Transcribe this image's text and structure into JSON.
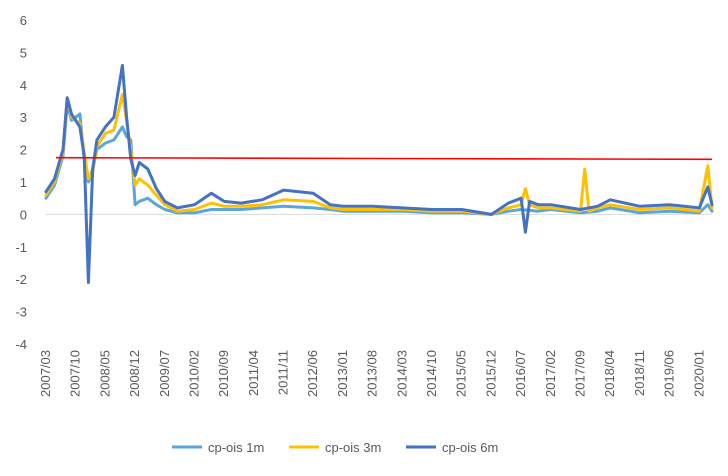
{
  "chart_data": {
    "type": "line",
    "title": "",
    "xlabel": "",
    "ylabel": "",
    "ylim": [
      -4,
      6
    ],
    "yticks": [
      6,
      5,
      4,
      3,
      2,
      1,
      0,
      -1,
      -2,
      -3,
      -4
    ],
    "x_tick_labels": [
      "2007/03",
      "2007/10",
      "2008/05",
      "2008/12",
      "2009/07",
      "2010/02",
      "2010/09",
      "2011/04",
      "2011/11",
      "2012/06",
      "2013/01",
      "2013/08",
      "2014/03",
      "2014/10",
      "2015/05",
      "2015/12",
      "2016/07",
      "2017/02",
      "2017/09",
      "2018/04",
      "2018/11",
      "2019/06",
      "2020/01"
    ],
    "x_range": [
      "2007/03",
      "2020/04"
    ],
    "grid": false,
    "legend_position": "bottom",
    "reference_line": {
      "y": 1.75,
      "y_end": 1.7,
      "color": "#ff0000"
    },
    "series": [
      {
        "name": "cp-ois 1m",
        "color": "#5aa6dc",
        "points": [
          [
            "2007/03",
            0.5
          ],
          [
            "2007/05",
            0.9
          ],
          [
            "2007/07",
            1.8
          ],
          [
            "2007/08",
            3.4
          ],
          [
            "2007/09",
            2.9
          ],
          [
            "2007/11",
            3.1
          ],
          [
            "2007/12",
            1.7
          ],
          [
            "2008/01",
            1.0
          ],
          [
            "2008/02",
            1.4
          ],
          [
            "2008/03",
            2.0
          ],
          [
            "2008/05",
            2.2
          ],
          [
            "2008/07",
            2.3
          ],
          [
            "2008/09",
            2.7
          ],
          [
            "2008/10",
            2.4
          ],
          [
            "2008/11",
            2.3
          ],
          [
            "2008/12",
            0.3
          ],
          [
            "2009/01",
            0.4
          ],
          [
            "2009/03",
            0.5
          ],
          [
            "2009/05",
            0.3
          ],
          [
            "2009/07",
            0.15
          ],
          [
            "2009/10",
            0.05
          ],
          [
            "2010/02",
            0.05
          ],
          [
            "2010/06",
            0.15
          ],
          [
            "2010/09",
            0.15
          ],
          [
            "2011/01",
            0.15
          ],
          [
            "2011/06",
            0.2
          ],
          [
            "2011/11",
            0.25
          ],
          [
            "2012/06",
            0.2
          ],
          [
            "2012/10",
            0.15
          ],
          [
            "2013/01",
            0.1
          ],
          [
            "2013/08",
            0.1
          ],
          [
            "2014/03",
            0.1
          ],
          [
            "2014/10",
            0.05
          ],
          [
            "2015/05",
            0.05
          ],
          [
            "2015/12",
            0.0
          ],
          [
            "2016/04",
            0.1
          ],
          [
            "2016/07",
            0.15
          ],
          [
            "2016/11",
            0.1
          ],
          [
            "2017/02",
            0.15
          ],
          [
            "2017/09",
            0.05
          ],
          [
            "2018/01",
            0.1
          ],
          [
            "2018/04",
            0.2
          ],
          [
            "2018/11",
            0.05
          ],
          [
            "2019/06",
            0.1
          ],
          [
            "2020/01",
            0.05
          ],
          [
            "2020/03",
            0.3
          ],
          [
            "2020/04",
            0.1
          ]
        ]
      },
      {
        "name": "cp-ois 3m",
        "color": "#ffc000",
        "points": [
          [
            "2007/03",
            0.6
          ],
          [
            "2007/05",
            1.0
          ],
          [
            "2007/07",
            1.9
          ],
          [
            "2007/08",
            3.6
          ],
          [
            "2007/09",
            3.0
          ],
          [
            "2007/11",
            2.8
          ],
          [
            "2007/12",
            1.9
          ],
          [
            "2008/01",
            1.1
          ],
          [
            "2008/02",
            1.3
          ],
          [
            "2008/03",
            2.1
          ],
          [
            "2008/05",
            2.5
          ],
          [
            "2008/07",
            2.6
          ],
          [
            "2008/09",
            3.7
          ],
          [
            "2008/10",
            2.9
          ],
          [
            "2008/11",
            2.0
          ],
          [
            "2008/12",
            0.9
          ],
          [
            "2009/01",
            1.1
          ],
          [
            "2009/03",
            0.9
          ],
          [
            "2009/05",
            0.6
          ],
          [
            "2009/07",
            0.3
          ],
          [
            "2009/10",
            0.1
          ],
          [
            "2010/02",
            0.15
          ],
          [
            "2010/06",
            0.35
          ],
          [
            "2010/09",
            0.25
          ],
          [
            "2011/01",
            0.25
          ],
          [
            "2011/06",
            0.3
          ],
          [
            "2011/11",
            0.45
          ],
          [
            "2012/06",
            0.4
          ],
          [
            "2012/10",
            0.2
          ],
          [
            "2013/01",
            0.15
          ],
          [
            "2013/08",
            0.15
          ],
          [
            "2014/03",
            0.15
          ],
          [
            "2014/10",
            0.1
          ],
          [
            "2015/05",
            0.1
          ],
          [
            "2015/12",
            0.0
          ],
          [
            "2016/04",
            0.2
          ],
          [
            "2016/07",
            0.3
          ],
          [
            "2016/08",
            0.8
          ],
          [
            "2016/09",
            0.3
          ],
          [
            "2016/11",
            0.2
          ],
          [
            "2017/02",
            0.2
          ],
          [
            "2017/09",
            0.1
          ],
          [
            "2017/10",
            1.4
          ],
          [
            "2017/11",
            0.1
          ],
          [
            "2018/01",
            0.2
          ],
          [
            "2018/04",
            0.3
          ],
          [
            "2018/11",
            0.15
          ],
          [
            "2019/06",
            0.2
          ],
          [
            "2020/01",
            0.1
          ],
          [
            "2020/03",
            1.5
          ],
          [
            "2020/04",
            0.2
          ]
        ]
      },
      {
        "name": "cp-ois 6m",
        "color": "#4472c4",
        "points": [
          [
            "2007/03",
            0.7
          ],
          [
            "2007/05",
            1.1
          ],
          [
            "2007/07",
            2.0
          ],
          [
            "2007/08",
            3.6
          ],
          [
            "2007/09",
            3.1
          ],
          [
            "2007/11",
            2.7
          ],
          [
            "2007/12",
            1.8
          ],
          [
            "2008/01",
            -2.1
          ],
          [
            "2008/02",
            1.4
          ],
          [
            "2008/03",
            2.3
          ],
          [
            "2008/05",
            2.7
          ],
          [
            "2008/07",
            3.0
          ],
          [
            "2008/09",
            4.6
          ],
          [
            "2008/10",
            3.0
          ],
          [
            "2008/11",
            1.7
          ],
          [
            "2008/12",
            1.2
          ],
          [
            "2009/01",
            1.6
          ],
          [
            "2009/03",
            1.4
          ],
          [
            "2009/05",
            0.8
          ],
          [
            "2009/07",
            0.4
          ],
          [
            "2009/10",
            0.2
          ],
          [
            "2010/02",
            0.3
          ],
          [
            "2010/06",
            0.65
          ],
          [
            "2010/09",
            0.4
          ],
          [
            "2011/01",
            0.35
          ],
          [
            "2011/06",
            0.45
          ],
          [
            "2011/11",
            0.75
          ],
          [
            "2012/06",
            0.65
          ],
          [
            "2012/10",
            0.3
          ],
          [
            "2013/01",
            0.25
          ],
          [
            "2013/08",
            0.25
          ],
          [
            "2014/03",
            0.2
          ],
          [
            "2014/10",
            0.15
          ],
          [
            "2015/05",
            0.15
          ],
          [
            "2015/12",
            0.0
          ],
          [
            "2016/04",
            0.35
          ],
          [
            "2016/07",
            0.5
          ],
          [
            "2016/08",
            -0.55
          ],
          [
            "2016/09",
            0.4
          ],
          [
            "2016/11",
            0.3
          ],
          [
            "2017/02",
            0.3
          ],
          [
            "2017/09",
            0.15
          ],
          [
            "2018/01",
            0.25
          ],
          [
            "2018/04",
            0.45
          ],
          [
            "2018/11",
            0.25
          ],
          [
            "2019/06",
            0.3
          ],
          [
            "2020/01",
            0.2
          ],
          [
            "2020/03",
            0.85
          ],
          [
            "2020/04",
            0.3
          ]
        ]
      }
    ]
  }
}
